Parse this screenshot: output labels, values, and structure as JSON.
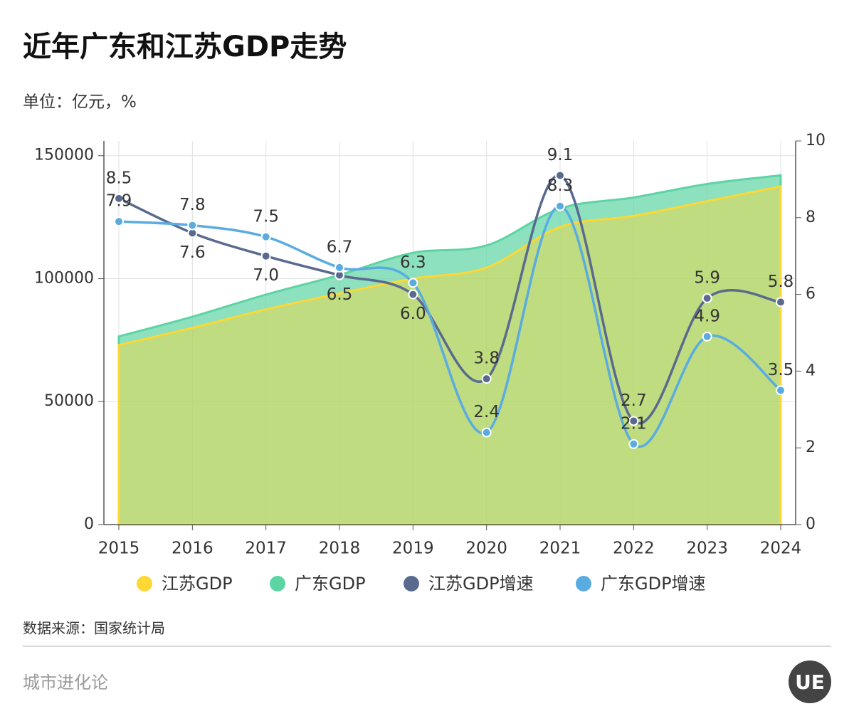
{
  "chart_data": {
    "type": "combo",
    "title": "近年广东和江苏GDP走势",
    "subtitle": "单位：亿元，%",
    "source": "数据来源：国家统计局",
    "categories": [
      "2015",
      "2016",
      "2017",
      "2018",
      "2019",
      "2020",
      "2021",
      "2022",
      "2023",
      "2024"
    ],
    "series": [
      {
        "name": "江苏GDP",
        "type": "area",
        "color": "#fdd835",
        "values": [
          73000,
          80000,
          87500,
          94000,
          100000,
          104500,
          121000,
          125500,
          131500,
          137500
        ]
      },
      {
        "name": "广东GDP",
        "type": "area",
        "color": "#5dd4a4",
        "values": [
          76500,
          84500,
          93500,
          101500,
          110500,
          113500,
          128500,
          133000,
          138500,
          142000
        ]
      },
      {
        "name": "江苏GDP增速",
        "type": "line",
        "axis": "y2",
        "color": "#5a6a8f",
        "values": [
          8.5,
          7.6,
          7.0,
          6.5,
          6.0,
          3.8,
          9.1,
          2.7,
          5.9,
          5.8
        ],
        "value_labels": [
          "8.5",
          "7.6",
          "7.0",
          "6.5",
          "6.0",
          "3.8",
          "9.1",
          "2.7",
          "5.9",
          "5.8"
        ]
      },
      {
        "name": "广东GDP增速",
        "type": "line",
        "axis": "y2",
        "color": "#5aace0",
        "values": [
          7.9,
          7.8,
          7.5,
          6.7,
          6.3,
          2.4,
          8.3,
          2.1,
          4.9,
          3.5
        ],
        "value_labels": [
          "7.9",
          "7.8",
          "7.5",
          "6.7",
          "6.3",
          "2.4",
          "8.3",
          "2.1",
          "4.9",
          "3.5"
        ]
      }
    ],
    "ylim": [
      0,
      156000
    ],
    "yticks": [
      0,
      50000,
      100000,
      150000
    ],
    "y2lim": [
      0,
      10
    ],
    "y2ticks": [
      0,
      2,
      4,
      6,
      8,
      10
    ],
    "grid": true
  },
  "footer": {
    "brand": "城市进化论",
    "logo": "UE"
  }
}
